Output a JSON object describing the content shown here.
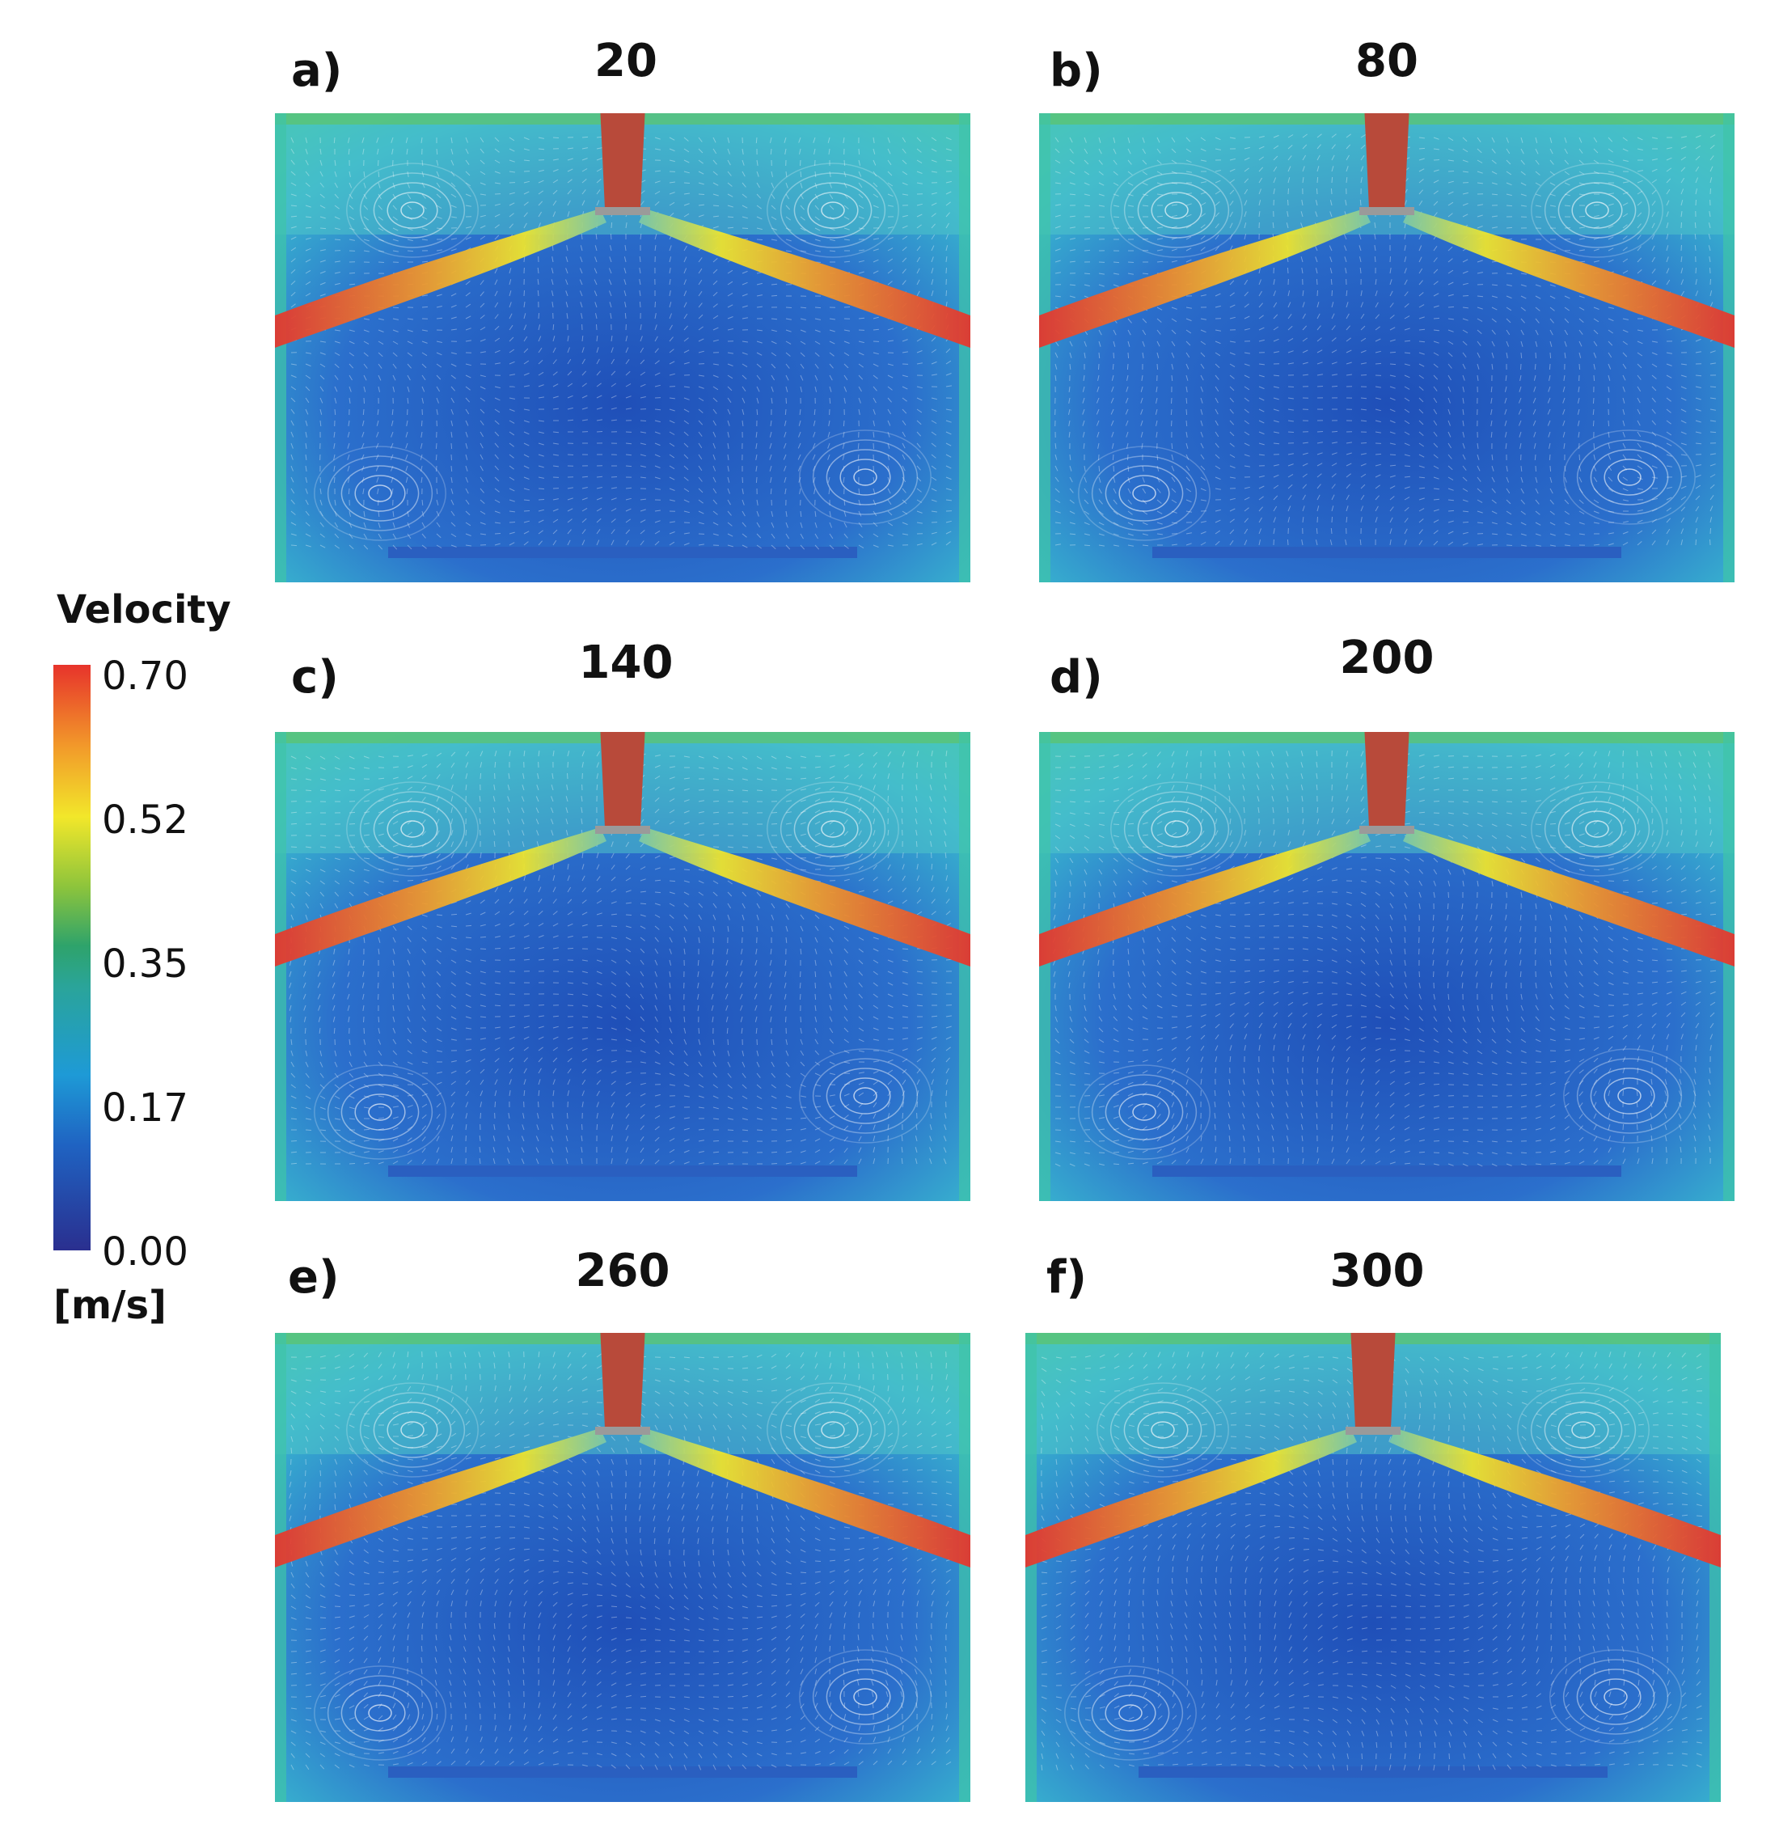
{
  "panels": [
    {
      "letter": "a)",
      "time": "20"
    },
    {
      "letter": "b)",
      "time": "80"
    },
    {
      "letter": "c)",
      "time": "140"
    },
    {
      "letter": "d)",
      "time": "200"
    },
    {
      "letter": "e)",
      "time": "260"
    },
    {
      "letter": "f)",
      "time": "300"
    }
  ],
  "colorbar": {
    "title": "Velocity",
    "unit": "[m/s]",
    "ticks": [
      "0.70",
      "0.52",
      "0.35",
      "0.17",
      "0.00"
    ],
    "min": 0.0,
    "max": 0.7,
    "colors": [
      "#2a2f8f",
      "#1e9ad6",
      "#2ea36b",
      "#f2e72a",
      "#e7332b"
    ]
  }
}
